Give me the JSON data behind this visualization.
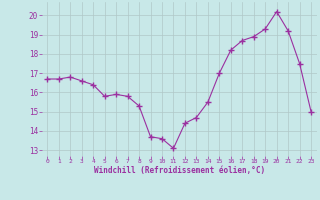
{
  "x": [
    0,
    1,
    2,
    3,
    4,
    5,
    6,
    7,
    8,
    9,
    10,
    11,
    12,
    13,
    14,
    15,
    16,
    17,
    18,
    19,
    20,
    21,
    22,
    23
  ],
  "y": [
    16.7,
    16.7,
    16.8,
    16.6,
    16.4,
    15.8,
    15.9,
    15.8,
    15.3,
    13.7,
    13.6,
    13.1,
    14.4,
    14.7,
    15.5,
    17.0,
    18.2,
    18.7,
    18.9,
    19.3,
    20.2,
    19.2,
    17.5,
    15.0
  ],
  "line_color": "#9b30a0",
  "marker": "+",
  "bg_color": "#c8e8e8",
  "grid_color": "#b0c8c8",
  "xlabel": "Windchill (Refroidissement éolien,°C)",
  "xlabel_color": "#9b30a0",
  "tick_color": "#9b30a0",
  "ylim": [
    12.7,
    20.7
  ],
  "yticks": [
    13,
    14,
    15,
    16,
    17,
    18,
    19,
    20
  ],
  "xlim": [
    -0.5,
    23.5
  ],
  "xticks": [
    0,
    1,
    2,
    3,
    4,
    5,
    6,
    7,
    8,
    9,
    10,
    11,
    12,
    13,
    14,
    15,
    16,
    17,
    18,
    19,
    20,
    21,
    22,
    23
  ],
  "figsize": [
    3.2,
    2.0
  ],
  "dpi": 100
}
